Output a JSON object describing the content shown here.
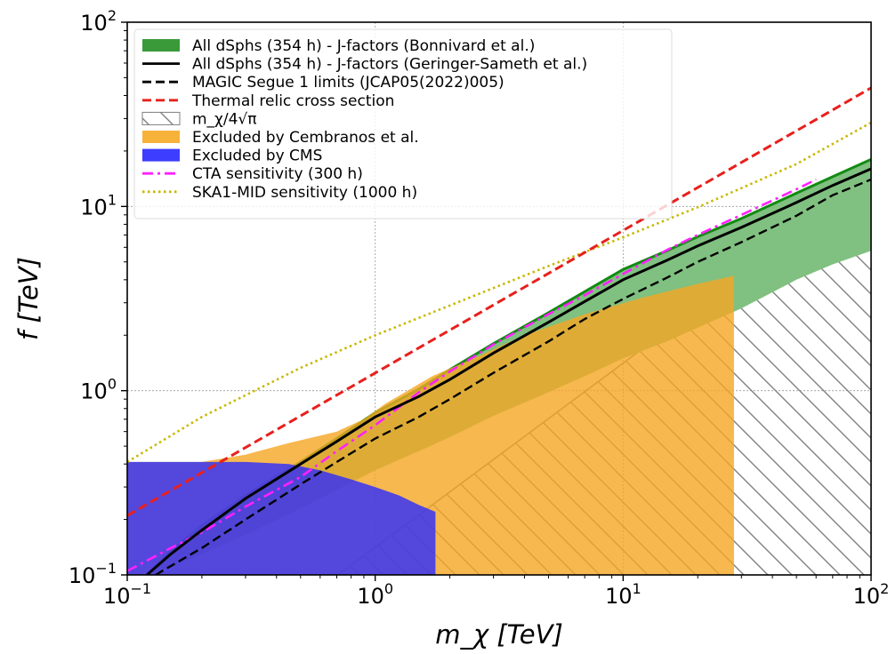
{
  "chart_data": {
    "type": "line",
    "title": "",
    "xlabel": "m_χ [TeV]",
    "ylabel": "f [TeV]",
    "xscale": "log",
    "yscale": "log",
    "xlim": [
      0.1,
      100
    ],
    "ylim": [
      0.1,
      100
    ],
    "grid": true,
    "legend_position": "top-left",
    "x_ticks": [
      {
        "value": 0.1,
        "base": "10",
        "exp": "−1"
      },
      {
        "value": 1,
        "base": "10",
        "exp": "0"
      },
      {
        "value": 10,
        "base": "10",
        "exp": "1"
      },
      {
        "value": 100,
        "base": "10",
        "exp": "2"
      }
    ],
    "y_ticks": [
      {
        "value": 0.1,
        "base": "10",
        "exp": "−1"
      },
      {
        "value": 1,
        "base": "10",
        "exp": "0"
      },
      {
        "value": 10,
        "base": "10",
        "exp": "1"
      },
      {
        "value": 100,
        "base": "10",
        "exp": "2"
      }
    ],
    "series": [
      {
        "name": "All dSphs (354 h) - J-factors (Bonnivard et al.)",
        "kind": "band",
        "color": "#3a9a3a",
        "x": [
          0.12,
          0.15,
          0.2,
          0.3,
          0.5,
          0.7,
          1,
          1.5,
          2,
          3,
          5,
          7,
          10,
          15,
          20,
          30,
          50,
          70,
          100
        ],
        "upper": [
          0.1,
          0.135,
          0.185,
          0.27,
          0.41,
          0.55,
          0.76,
          1.02,
          1.3,
          1.8,
          2.65,
          3.45,
          4.55,
          5.75,
          6.85,
          8.6,
          11.8,
          14.5,
          18
        ],
        "lower": [
          0.1,
          0.11,
          0.13,
          0.165,
          0.23,
          0.29,
          0.37,
          0.47,
          0.56,
          0.73,
          0.98,
          1.2,
          1.5,
          1.85,
          2.2,
          2.8,
          4.0,
          4.85,
          5.75
        ]
      },
      {
        "name": "All dSphs (354 h) - J-factors (Geringer-Sameth et al.)",
        "kind": "line",
        "color": "#000000",
        "style": "solid",
        "x": [
          0.12,
          0.15,
          0.2,
          0.3,
          0.5,
          0.7,
          1,
          1.5,
          2,
          3,
          5,
          7,
          10,
          15,
          20,
          30,
          50,
          70,
          100
        ],
        "y": [
          0.1,
          0.13,
          0.175,
          0.26,
          0.4,
          0.53,
          0.72,
          0.93,
          1.15,
          1.6,
          2.35,
          3.05,
          4.0,
          5.1,
          6.1,
          7.7,
          10.5,
          13.0,
          16.0
        ]
      },
      {
        "name": "MAGIC Segue 1 limits (JCAP05(2022)005)",
        "kind": "line",
        "color": "#000000",
        "style": "dashed",
        "x": [
          0.13,
          0.2,
          0.3,
          0.5,
          0.7,
          1,
          1.5,
          2,
          3,
          5,
          7,
          10,
          15,
          20,
          30,
          50,
          70,
          100
        ],
        "y": [
          0.1,
          0.14,
          0.2,
          0.31,
          0.41,
          0.55,
          0.72,
          0.9,
          1.25,
          1.85,
          2.45,
          3.15,
          4.1,
          5.0,
          6.4,
          8.9,
          11.5,
          14.0
        ]
      },
      {
        "name": "Thermal relic cross section",
        "kind": "line",
        "color": "#e8201c",
        "style": "dashed",
        "x": [
          0.1,
          100
        ],
        "y": [
          0.21,
          44
        ]
      },
      {
        "name": "m_χ/4√π",
        "kind": "hatch",
        "color": "#777777",
        "x": [
          0.709,
          100
        ],
        "y": [
          0.1,
          14.1
        ]
      },
      {
        "name": "Excluded by Cembranos et al.",
        "kind": "region",
        "color": "#f7b239",
        "x": [
          0.1,
          0.2,
          0.3,
          0.45,
          0.6,
          0.7,
          0.9,
          1.1,
          1.35,
          1.7,
          2.5,
          4,
          7,
          12,
          20,
          28
        ],
        "y": [
          0.41,
          0.41,
          0.45,
          0.52,
          0.57,
          0.6,
          0.7,
          0.85,
          1.0,
          1.2,
          1.5,
          2.0,
          2.6,
          3.2,
          3.8,
          4.2
        ]
      },
      {
        "name": "Excluded by CMS",
        "kind": "region",
        "color": "#3d3dff",
        "x": [
          0.1,
          0.3,
          0.45,
          0.6,
          0.8,
          1.0,
          1.25,
          1.5,
          1.75
        ],
        "y": [
          0.41,
          0.41,
          0.4,
          0.37,
          0.33,
          0.3,
          0.27,
          0.24,
          0.22
        ]
      },
      {
        "name": "CTA sensitivity (300 h)",
        "kind": "line",
        "color": "#ff20ff",
        "style": "dashdot",
        "x": [
          0.1,
          0.15,
          0.2,
          0.3,
          0.5,
          0.7,
          1,
          1.5,
          2,
          3,
          5,
          7,
          10,
          15,
          20,
          30,
          50,
          60
        ],
        "y": [
          0.105,
          0.14,
          0.17,
          0.235,
          0.34,
          0.47,
          0.65,
          0.98,
          1.27,
          1.78,
          2.6,
          3.3,
          4.3,
          5.8,
          7.0,
          9.0,
          12.4,
          14.0
        ]
      },
      {
        "name": "SKA1-MID sensitivity (1000 h)",
        "kind": "line",
        "color": "#c9b800",
        "style": "dotted",
        "x": [
          0.1,
          0.2,
          0.5,
          1,
          2,
          5,
          10,
          20,
          50,
          100
        ],
        "y": [
          0.41,
          0.72,
          1.33,
          2.0,
          2.9,
          4.75,
          6.8,
          9.9,
          17.0,
          28.5
        ]
      }
    ]
  }
}
